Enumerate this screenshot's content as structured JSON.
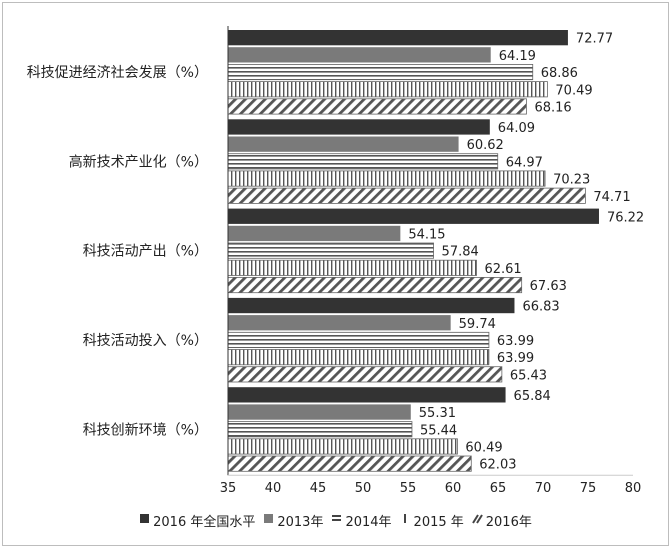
{
  "chart_data": {
    "type": "bar",
    "orientation": "horizontal",
    "categories": [
      "科技促进经济社会发展（%）",
      "高新技术产业化（%）",
      "科技活动产出（%）",
      "科技活动投入（%）",
      "科技创新环境（%）"
    ],
    "series": [
      {
        "name": "2016 年全国水平",
        "values": [
          72.77,
          64.09,
          76.22,
          66.83,
          65.84
        ],
        "pattern": "solid-black"
      },
      {
        "name": "2013年",
        "values": [
          64.19,
          60.62,
          54.15,
          59.74,
          55.31
        ],
        "pattern": "solid-gray"
      },
      {
        "name": "2014年",
        "values": [
          68.86,
          64.97,
          57.84,
          63.99,
          55.44
        ],
        "pattern": "horizontal-lines"
      },
      {
        "name": "2015 年",
        "values": [
          70.49,
          70.23,
          62.61,
          63.99,
          60.49
        ],
        "pattern": "vertical-lines"
      },
      {
        "name": "2016年",
        "values": [
          68.16,
          74.71,
          67.63,
          65.43,
          62.03
        ],
        "pattern": "diagonal-hatch"
      }
    ],
    "value_labels": [
      [
        "72.77",
        "64.09",
        "76.22",
        "66.83",
        "65.84"
      ],
      [
        "64.19",
        "60.62",
        "54.15",
        "59.74",
        "55.31"
      ],
      [
        "68.86",
        "64.97",
        "57.84",
        "63.99",
        "55.44"
      ],
      [
        "70.49",
        "70.23",
        "62.61",
        "63.99",
        "60.49"
      ],
      [
        "68.16",
        "74.71",
        "67.63",
        "65.43",
        "62.03"
      ]
    ],
    "xlim": [
      35,
      80
    ],
    "xticks": [
      35,
      40,
      45,
      50,
      55,
      60,
      65,
      70,
      75,
      80
    ],
    "xtick_labels": [
      "35",
      "40",
      "45",
      "50",
      "55",
      "60",
      "65",
      "70",
      "75",
      "80"
    ],
    "grid": false,
    "legend_position": "bottom",
    "title": "",
    "xlabel": "",
    "ylabel": ""
  }
}
